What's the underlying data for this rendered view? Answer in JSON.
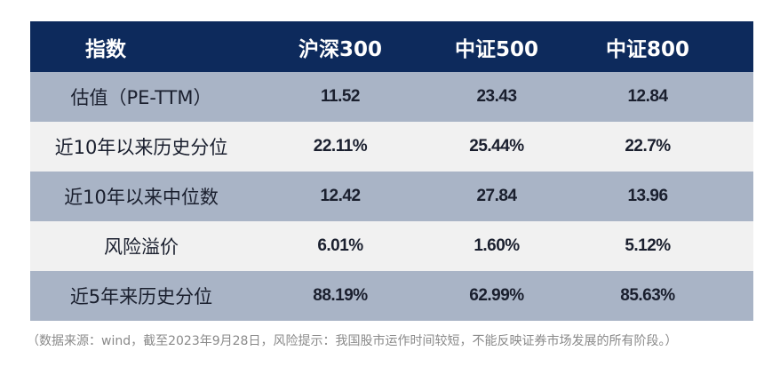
{
  "table": {
    "headers": [
      "指数",
      "沪深300",
      "中证500",
      "中证800"
    ],
    "rows": [
      {
        "label": "估值（PE-TTM）",
        "values": [
          "11.52",
          "23.43",
          "12.84"
        ]
      },
      {
        "label": "近10年以来历史分位",
        "values": [
          "22.11%",
          "25.44%",
          "22.7%"
        ]
      },
      {
        "label": "近10年以来中位数",
        "values": [
          "12.42",
          "27.84",
          "13.96"
        ]
      },
      {
        "label": "风险溢价",
        "values": [
          "6.01%",
          "1.60%",
          "5.12%"
        ]
      },
      {
        "label": "近5年来历史分位",
        "values": [
          "88.19%",
          "62.99%",
          "85.63%"
        ]
      }
    ]
  },
  "source_note": "（数据来源：wind，截至2023年9月28日，风险提示：我国股市运作时间较短，不能反映证券市场发展的所有阶段。）",
  "colors": {
    "header_bg": "#0d2a5c",
    "shaded_row": "#a9b4c6",
    "light_row": "#f1f1f1"
  }
}
